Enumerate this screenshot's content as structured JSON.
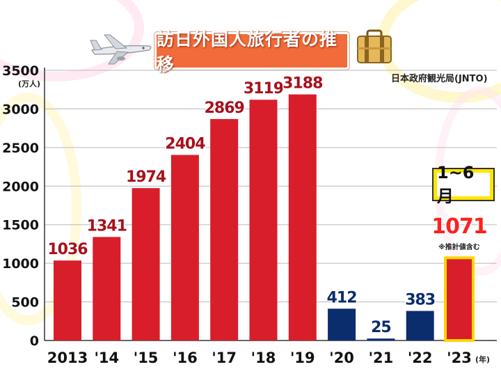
{
  "title": "訪日外国人旅行者の推移",
  "source": "日本政府観光局(JNTO)",
  "unit": "(万人)",
  "period_label": "1~6月",
  "estimate_note": "※推計値含む",
  "year_suffix": "(年)",
  "colors": {
    "red_bar": "#d81e2a",
    "blue_bar": "#0b2d6e",
    "highlight_border": "#ffd400",
    "title_bg": "#f26b3a"
  },
  "icons": [
    "airplane-icon",
    "suitcase-icon"
  ],
  "chart_data": {
    "type": "bar",
    "categories": [
      "2013",
      "'14",
      "'15",
      "'16",
      "'17",
      "'18",
      "'19",
      "'20",
      "'21",
      "'22",
      "'23"
    ],
    "values": [
      1036,
      1341,
      1974,
      2404,
      2869,
      3119,
      3188,
      412,
      25,
      383,
      1071
    ],
    "value_labels": [
      "1036",
      "1341",
      "1974",
      "2404",
      "2869",
      "3119",
      "3188",
      "412",
      "25",
      "383",
      "1071"
    ],
    "bar_colors": [
      "red",
      "red",
      "red",
      "red",
      "red",
      "red",
      "red",
      "blue",
      "blue",
      "blue",
      "red-highlight"
    ],
    "ylim": [
      0,
      3500
    ],
    "yticks": [
      0,
      500,
      1000,
      1500,
      2000,
      2500,
      3000,
      3500
    ],
    "grid": true,
    "title": "訪日外国人旅行者の推移",
    "ylabel": "(万人)",
    "xlabel": "(年)"
  }
}
